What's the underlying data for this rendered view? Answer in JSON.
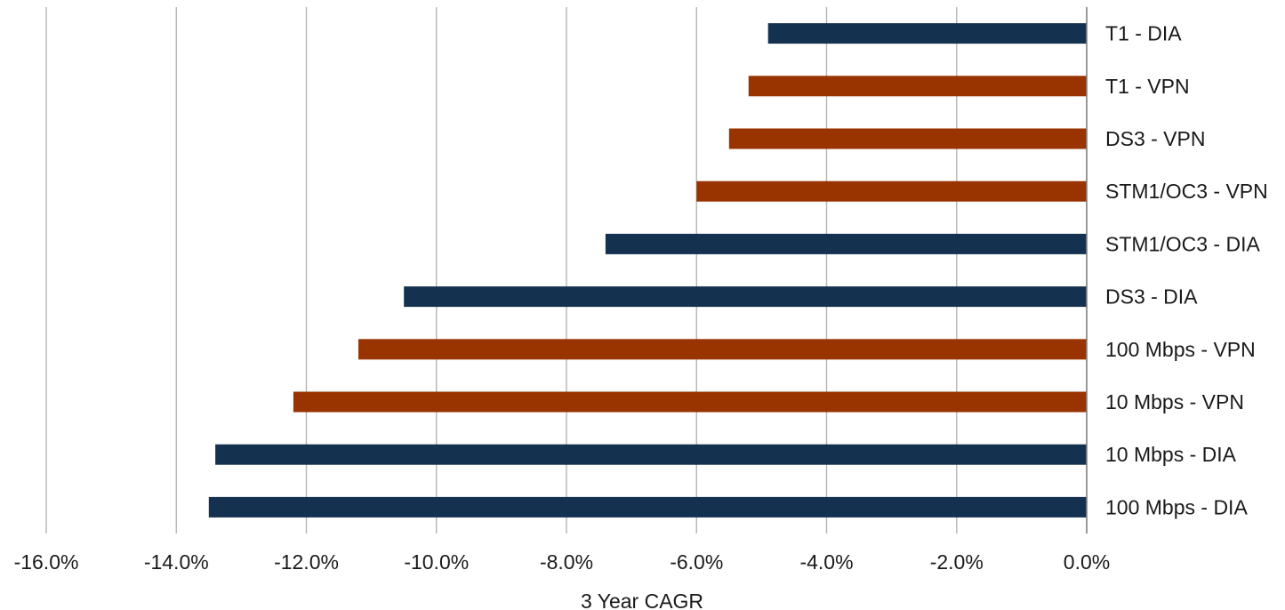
{
  "chart_data": {
    "type": "bar",
    "orientation": "horizontal",
    "categories": [
      "T1 - DIA",
      "T1 - VPN",
      "DS3 - VPN",
      "STM1/OC3 - VPN",
      "STM1/OC3 - DIA",
      "DS3 - DIA",
      "100 Mbps - VPN",
      "10 Mbps - VPN",
      "10 Mbps - DIA",
      "100 Mbps - DIA"
    ],
    "values": [
      -4.9,
      -5.2,
      -5.5,
      -6.0,
      -7.4,
      -10.5,
      -11.2,
      -12.2,
      -13.4,
      -13.5
    ],
    "bar_colors": [
      "#14314f",
      "#993300",
      "#993300",
      "#993300",
      "#14314f",
      "#14314f",
      "#993300",
      "#993300",
      "#14314f",
      "#14314f"
    ],
    "xlabel": "3 Year CAGR",
    "xlim": [
      -16.0,
      0.0
    ],
    "x_ticks": [
      -16.0,
      -14.0,
      -12.0,
      -10.0,
      -8.0,
      -6.0,
      -4.0,
      -2.0,
      0.0
    ],
    "x_tick_labels": [
      "-16.0%",
      "-14.0%",
      "-12.0%",
      "-10.0%",
      "-8.0%",
      "-6.0%",
      "-4.0%",
      "-2.0%",
      "0.0%"
    ],
    "grid": "vertical",
    "category_label_position": "right"
  }
}
